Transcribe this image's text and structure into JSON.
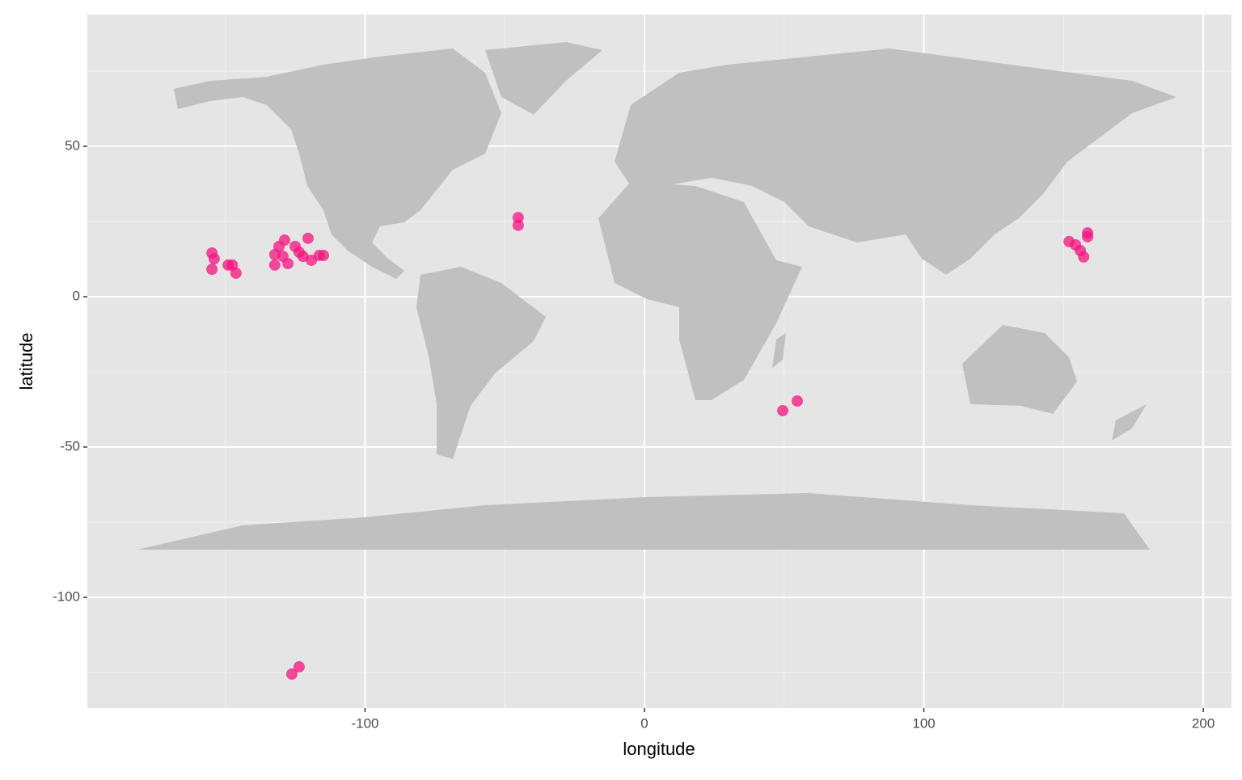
{
  "chart_data": {
    "type": "scatter",
    "x_label": "longitude",
    "y_label": "latitude",
    "xlim": [
      -199.4,
      210.1
    ],
    "ylim": [
      -136.8,
      93.8
    ],
    "xticks": [
      -100,
      0,
      100,
      200
    ],
    "yticks": [
      -100,
      -50,
      0,
      50
    ],
    "grid": true,
    "series": [
      {
        "color": "#f5137f",
        "x": [
          -154.8,
          -154.8,
          -154,
          -149,
          -147.5,
          -146.2,
          -132.3,
          -130.8,
          -128.8,
          -132.3,
          -127.6,
          -125,
          -123.6,
          -120.4,
          -119.2,
          -116.4,
          -114.9,
          -129.4,
          -122.2,
          -45.2,
          -45.2,
          49.5,
          54.7,
          152,
          154.3,
          156,
          157.2,
          158.6,
          158.6,
          -126.2,
          -123.6
        ],
        "values": [
          14.5,
          9.1,
          12.6,
          10.5,
          10.5,
          7.8,
          10.5,
          16.7,
          18.8,
          14,
          11,
          16.7,
          14.8,
          19.4,
          12.1,
          13.7,
          13.7,
          13.4,
          13.4,
          26.3,
          23.7,
          -37.9,
          -34.7,
          18.3,
          17.2,
          15.3,
          13.2,
          21.2,
          19.9,
          -125.5,
          -123.1
        ]
      }
    ]
  }
}
